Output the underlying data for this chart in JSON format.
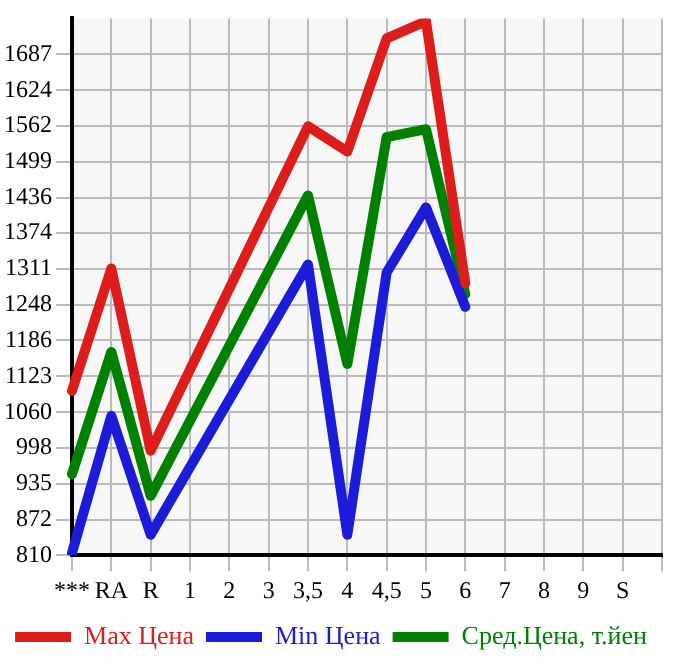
{
  "chart_data": {
    "type": "line",
    "categories": [
      "***",
      "RA",
      "R",
      "1",
      "2",
      "3",
      "3,5",
      "4",
      "4,5",
      "5",
      "6",
      "7",
      "8",
      "9",
      "S",
      null
    ],
    "series": [
      {
        "name": "Max Цена",
        "color": "#dd1c1c",
        "values": [
          1098,
          1312,
          993,
          null,
          null,
          null,
          1561,
          1517,
          1715,
          1745,
          1286,
          null,
          null,
          null,
          null,
          null
        ]
      },
      {
        "name": "Min Цена",
        "color": "#1c1cd8",
        "values": [
          814,
          1054,
          846,
          null,
          null,
          null,
          1319,
          846,
          1305,
          1419,
          1245,
          null,
          null,
          null,
          null,
          null
        ]
      },
      {
        "name": "Сред.Цена, т.йен",
        "color": "#008000",
        "values": [
          952,
          1166,
          914,
          null,
          null,
          null,
          1440,
          1145,
          1542,
          1556,
          1267,
          null,
          null,
          null,
          null,
          null
        ]
      }
    ],
    "ylim": [
      810,
      1750
    ],
    "yticks": [
      810,
      872,
      935,
      998,
      1060,
      1123,
      1186,
      1248,
      1311,
      1374,
      1436,
      1499,
      1562,
      1624,
      1687
    ],
    "grid": true,
    "legend": "bottom",
    "marker": "none",
    "line_style": "solid"
  }
}
